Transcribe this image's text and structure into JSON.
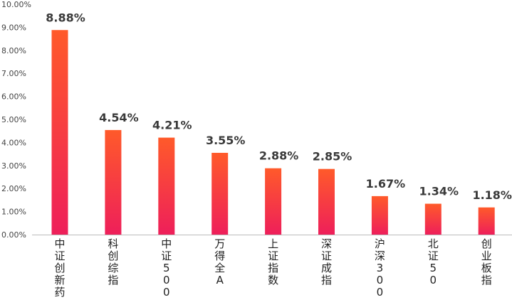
{
  "chart_data": {
    "type": "bar",
    "categories": [
      "中证创新药",
      "科创综指",
      "中证500",
      "万得全A",
      "上证指数",
      "深证成指",
      "沪深300",
      "北证50",
      "创业板指"
    ],
    "values": [
      8.88,
      4.54,
      4.21,
      3.55,
      2.88,
      2.85,
      1.67,
      1.34,
      1.18
    ],
    "value_labels": [
      "8.88%",
      "4.54%",
      "4.21%",
      "3.55%",
      "2.88%",
      "2.85%",
      "1.67%",
      "1.34%",
      "1.18%"
    ],
    "y_ticks": [
      "0.00%",
      "1.00%",
      "2.00%",
      "3.00%",
      "4.00%",
      "5.00%",
      "6.00%",
      "7.00%",
      "8.00%",
      "9.00%",
      "10.00%"
    ],
    "ylim": [
      0,
      10
    ],
    "grid": false,
    "legend": "none",
    "title": "",
    "xlabel": "",
    "ylabel": "",
    "colors": {
      "bar_top": "#ff5a2a",
      "bar_bottom": "#ee1f5a",
      "axis": "#bbbbbb"
    }
  }
}
